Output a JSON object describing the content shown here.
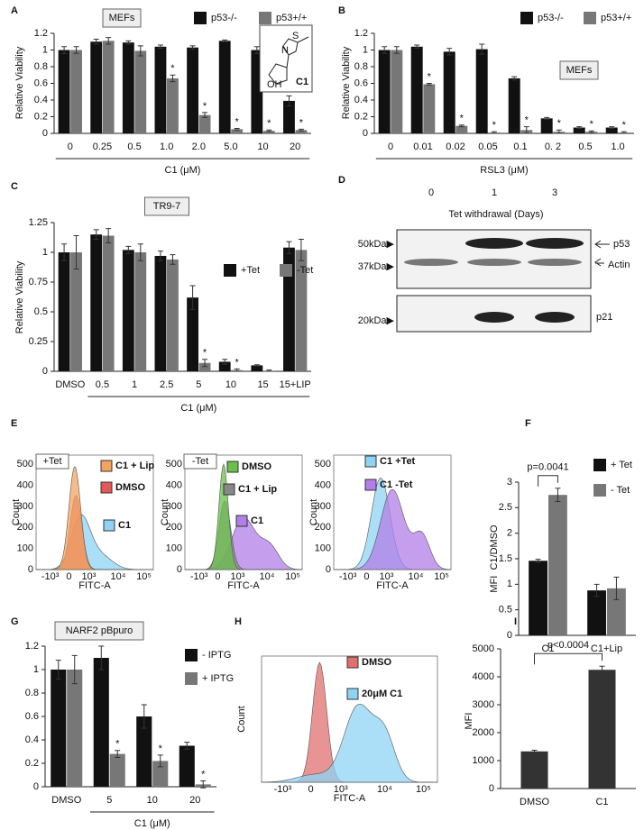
{
  "panel_letters": [
    "A",
    "B",
    "C",
    "D",
    "E",
    "F",
    "G",
    "H",
    "I"
  ],
  "chart_data": [
    {
      "type": "bar",
      "label": "MEFs",
      "categories": [
        "0",
        "0.25",
        "0.5",
        "1.0",
        "2.0",
        "5.0",
        "10",
        "20"
      ],
      "series": [
        {
          "name": "p53-/-",
          "color": "#111111",
          "values": [
            1,
            1.1,
            1.09,
            1.04,
            1.03,
            1.11,
            1,
            0.39
          ],
          "errors": [
            0.04,
            0.03,
            0.02,
            0.02,
            0.02,
            0.01,
            0.04,
            0.06
          ]
        },
        {
          "name": "p53+/+",
          "color": "#777777",
          "values": [
            1,
            1.11,
            0.99,
            0.66,
            0.22,
            0.05,
            0.03,
            0.04
          ],
          "errors": [
            0.04,
            0.04,
            0.06,
            0.04,
            0.03,
            0.01,
            0.01,
            0.01
          ],
          "significance": [
            null,
            null,
            null,
            "*",
            "*",
            "*",
            "*",
            "*"
          ]
        }
      ],
      "ylim": [
        0,
        1.2
      ],
      "yticks": [
        0,
        0.2,
        0.4,
        0.6,
        0.8,
        1,
        1.2
      ],
      "y_label": "Relative Viability",
      "x_label": "C1 (μM)",
      "structure": {
        "label": "C1",
        "atoms": [
          "S",
          "N",
          "OH"
        ]
      }
    },
    {
      "type": "bar",
      "label": "MEFs",
      "categories": [
        "0",
        "0.01",
        "0.02",
        "0.05",
        "0.1",
        "0. 2",
        "0.5",
        "1.0"
      ],
      "series": [
        {
          "name": "p53-/-",
          "color": "#111111",
          "values": [
            1,
            1.04,
            0.98,
            1.01,
            0.66,
            0.18,
            0.07,
            0.07
          ],
          "errors": [
            0.04,
            0.02,
            0.04,
            0.06,
            0.02,
            0.01,
            0.01,
            0.01
          ]
        },
        {
          "name": "p53+/+",
          "color": "#777777",
          "values": [
            1,
            0.59,
            0.09,
            0.01,
            0.04,
            0.02,
            0.02,
            0.01
          ],
          "errors": [
            0.04,
            0.01,
            0.01,
            0.01,
            0.04,
            0.02,
            0.01,
            0.01
          ],
          "significance": [
            null,
            "*",
            "*",
            "*",
            "*",
            "*",
            "*",
            "*"
          ]
        }
      ],
      "ylim": [
        0,
        1.2
      ],
      "yticks": [
        0,
        0.2,
        0.4,
        0.6,
        0.8,
        1,
        1.2
      ],
      "y_label": "Relative Viability",
      "x_label": "RSL3 (μM)"
    },
    {
      "type": "bar",
      "label": "TR9-7",
      "categories": [
        "DMSO",
        "0.5",
        "1",
        "2.5",
        "5",
        "10",
        "15",
        "15+LIP"
      ],
      "series": [
        {
          "name": "+Tet",
          "color": "#111111",
          "values": [
            1,
            1.15,
            1.02,
            0.97,
            0.62,
            0.08,
            0.05,
            1.04
          ],
          "errors": [
            0.07,
            0.04,
            0.03,
            0.04,
            0.1,
            0.02,
            0.005,
            0.05
          ]
        },
        {
          "name": "-Tet",
          "color": "#777777",
          "values": [
            1,
            1.14,
            1,
            0.94,
            0.07,
            0.01,
            0.005,
            1.02
          ],
          "errors": [
            0.14,
            0.06,
            0.07,
            0.04,
            0.03,
            0.01,
            0.005,
            0.09
          ],
          "significance": [
            null,
            null,
            null,
            null,
            "*",
            "*",
            null,
            null
          ]
        }
      ],
      "ylim": [
        0,
        1.25
      ],
      "yticks": [
        0,
        0.25,
        0.5,
        0.75,
        1,
        1.25
      ],
      "y_label": "Relative Viability",
      "x_label": "C1 (μM)"
    },
    {
      "type": "bar",
      "categories": [
        "C1",
        "C1+Lip"
      ],
      "series": [
        {
          "name": "+ Tet",
          "color": "#111111",
          "values": [
            1.46,
            0.88
          ],
          "errors": [
            0.03,
            0.12
          ]
        },
        {
          "name": "- Tet",
          "color": "#777777",
          "values": [
            2.75,
            0.92
          ],
          "errors": [
            0.13,
            0.22
          ]
        }
      ],
      "ylim": [
        0,
        3
      ],
      "yticks": [
        0,
        0.5,
        1,
        1.5,
        2,
        2.5,
        3
      ],
      "y_label": "MFI  C1/DMSO",
      "bracket": "p=0.0041"
    },
    {
      "type": "bar",
      "label": "NARF2 pBpuro",
      "categories": [
        "DMSO",
        "5",
        "10",
        "20"
      ],
      "series": [
        {
          "name": "- IPTG",
          "color": "#111111",
          "values": [
            1,
            1.1,
            0.6,
            0.35
          ],
          "errors": [
            0.08,
            0.1,
            0.1,
            0.03
          ]
        },
        {
          "name": "+ IPTG",
          "color": "#777777",
          "values": [
            1,
            0.28,
            0.22,
            0.02
          ],
          "errors": [
            0.12,
            0.03,
            0.05,
            0.03
          ],
          "significance": [
            null,
            "*",
            "*",
            "*"
          ]
        }
      ],
      "ylim": [
        0,
        1.2
      ],
      "yticks": [
        0,
        0.2,
        0.4,
        0.6,
        0.8,
        1,
        1.2
      ],
      "x_label": "C1 (μM)"
    },
    {
      "type": "bar",
      "categories": [
        "DMSO",
        "C1"
      ],
      "values": [
        1330,
        4250
      ],
      "errors": [
        40,
        130
      ],
      "color": "#333333",
      "ylim": [
        0,
        5000
      ],
      "yticks": [
        0,
        1000,
        2000,
        3000,
        4000,
        5000
      ],
      "y_label": "MFI",
      "bracket": "p<0.0004"
    }
  ],
  "blot": {
    "lanes": [
      "0",
      "1",
      "3"
    ],
    "title": "Tet withdrawal (Days)",
    "markers": [
      "50kDa▶",
      "37kDa▶",
      "20kDa▶"
    ],
    "bands": [
      "p53",
      "Actin",
      "p21"
    ]
  },
  "flow": {
    "x_label": "FITC-A",
    "y_label": "Count",
    "xticks": [
      "-10³",
      "0",
      "10³",
      "10⁴",
      "10⁵"
    ],
    "yticks": [
      "0",
      "100",
      "200",
      "300",
      "400",
      "500"
    ],
    "panels": [
      {
        "label": "+Tet",
        "legend": [
          {
            "name": "C1 + Lip",
            "color": "#f4a460"
          },
          {
            "name": "DMSO",
            "color": "#e05a5a"
          },
          {
            "name": "C1",
            "color": "#8fd3f4"
          }
        ]
      },
      {
        "label": "-Tet",
        "legend": [
          {
            "name": "DMSO",
            "color": "#6abf4b"
          },
          {
            "name": "C1 + Lip",
            "color": "#888888"
          },
          {
            "name": "C1",
            "color": "#b27fe8"
          }
        ]
      },
      {
        "legend": [
          {
            "name": "C1 +Tet",
            "color": "#8fd3f4"
          },
          {
            "name": "C1 -Tet",
            "color": "#b27fe8"
          }
        ]
      },
      {
        "legend": [
          {
            "name": "DMSO",
            "color": "#e07070"
          },
          {
            "name": "20μM C1",
            "color": "#8fd3f4"
          }
        ]
      }
    ]
  }
}
